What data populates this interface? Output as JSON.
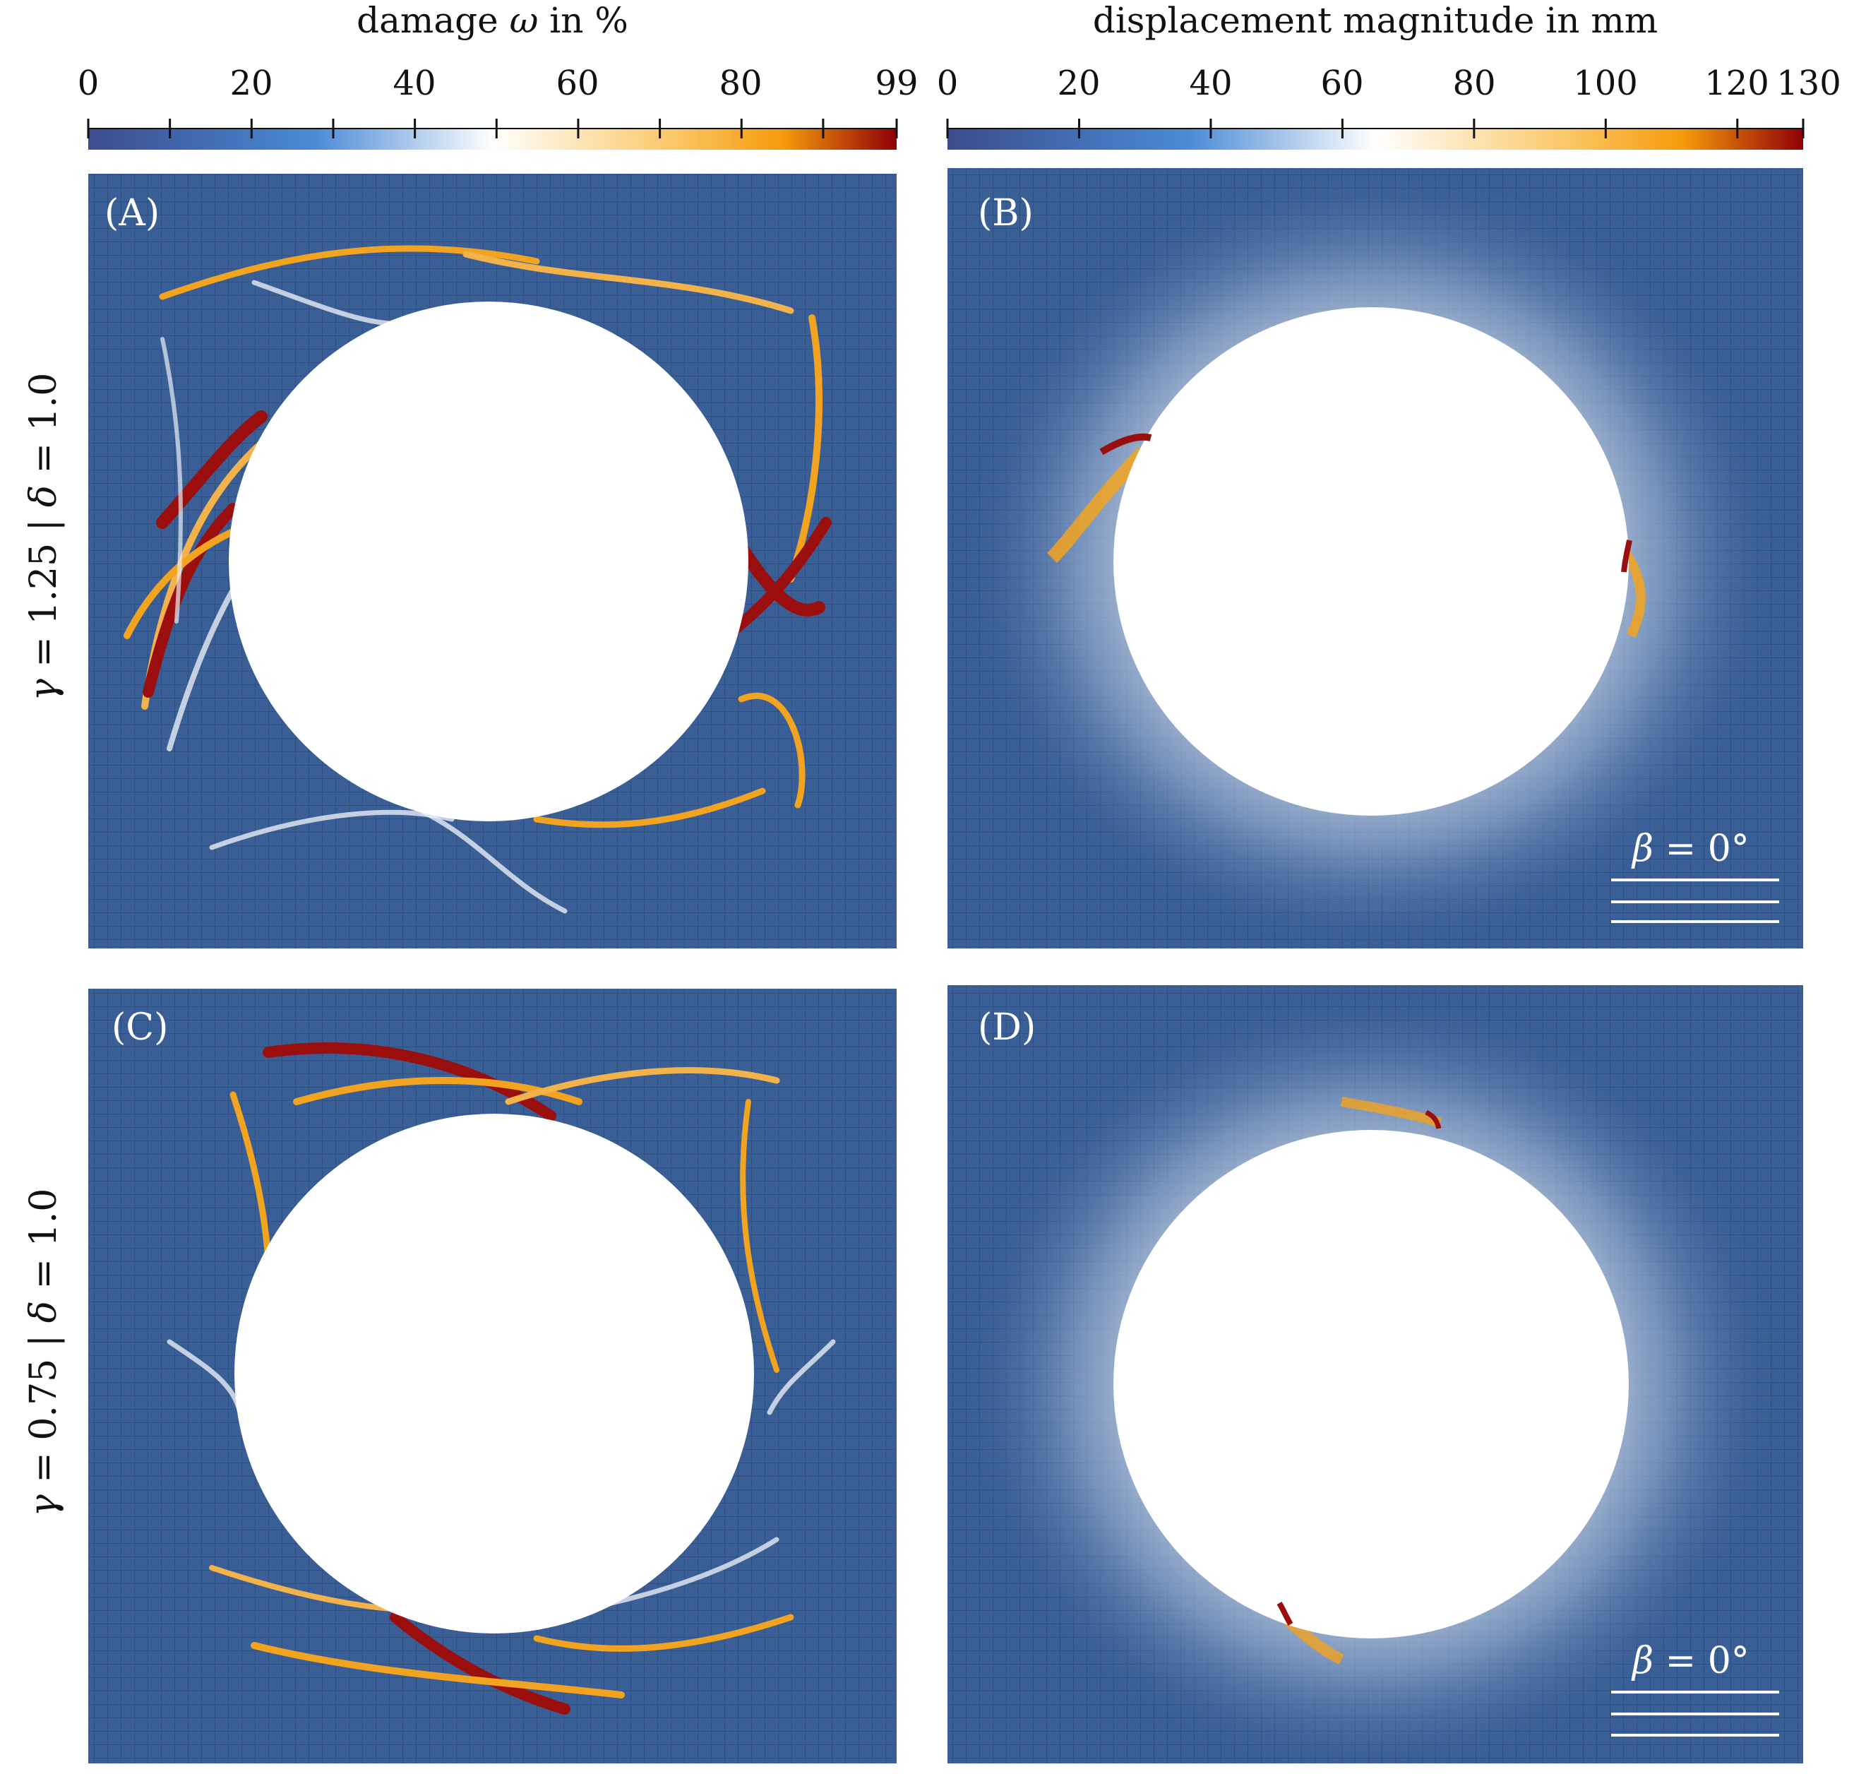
{
  "colorbars": {
    "damage": {
      "title_pre": "damage ",
      "title_sym": "ω",
      "title_post": " in %",
      "min": 0,
      "max": 99,
      "ticks": [
        "0",
        "20",
        "40",
        "60",
        "80",
        "99"
      ],
      "tick_values": [
        0,
        20,
        40,
        60,
        80,
        99
      ]
    },
    "displacement": {
      "title": "displacement magnitude in mm",
      "min": 0,
      "max": 130,
      "ticks": [
        "0",
        "20",
        "40",
        "60",
        "80",
        "100",
        "120",
        "130"
      ],
      "tick_values": [
        0,
        20,
        40,
        60,
        80,
        100,
        120,
        130
      ]
    }
  },
  "rows": [
    {
      "gamma": "γ",
      "gamma_val": "1.25",
      "delta": "δ",
      "delta_val": "1.0"
    },
    {
      "gamma": "γ",
      "gamma_val": "0.75",
      "delta": "δ",
      "delta_val": "1.0"
    }
  ],
  "panels": {
    "A": "(A)",
    "B": "(B)",
    "C": "(C)",
    "D": "(D)"
  },
  "beta_label": {
    "sym": "β",
    "value": "= 0°"
  },
  "colors": {
    "field_background": "#3a5f96",
    "mesh_line": "#2e4e80",
    "mid_white": "#f4f4f4",
    "orange": "#f2a31f",
    "dark_red": "#9a0e0e",
    "light_blue": "#4f8bd3"
  }
}
